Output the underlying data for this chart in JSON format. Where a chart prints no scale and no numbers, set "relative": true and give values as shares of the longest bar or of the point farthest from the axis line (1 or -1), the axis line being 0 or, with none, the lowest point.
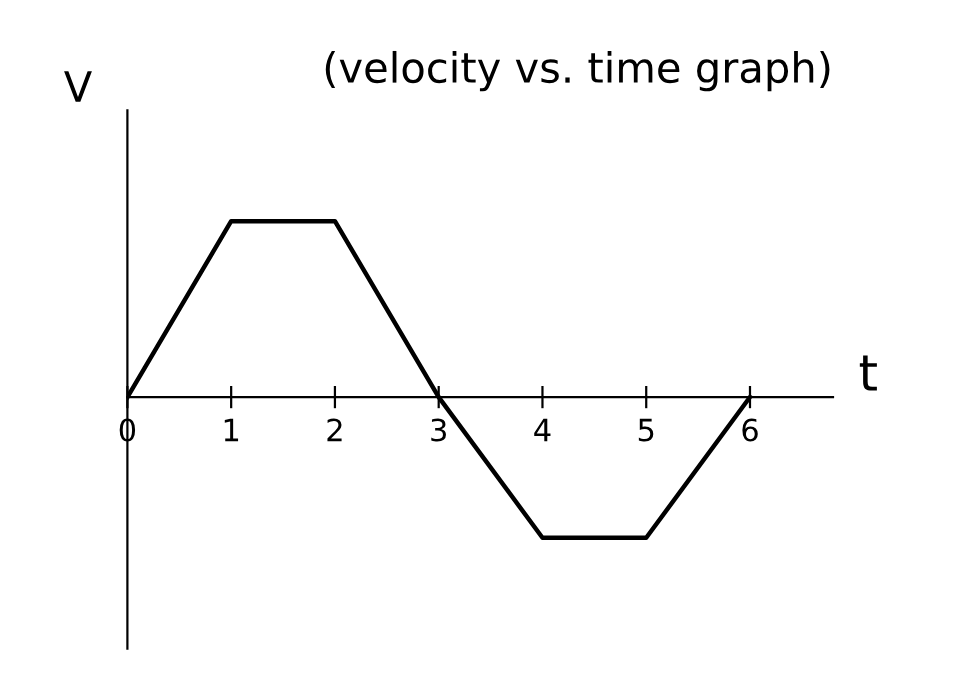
{
  "chart_data": {
    "type": "line",
    "title": "(velocity vs. time graph)",
    "xlabel": "t",
    "ylabel": "V",
    "x": [
      0,
      1,
      2,
      3,
      4,
      5,
      6
    ],
    "series": [
      {
        "color": "#000000",
        "values": [
          0,
          1,
          1,
          0,
          -0.8,
          -0.8,
          0
        ]
      }
    ],
    "relative": true,
    "xlim": [
      0,
      6.8
    ],
    "xticks": [
      0,
      1,
      2,
      3,
      4,
      5,
      6
    ],
    "grid": false,
    "legend": false,
    "marker": "none",
    "line_style": "solid"
  }
}
